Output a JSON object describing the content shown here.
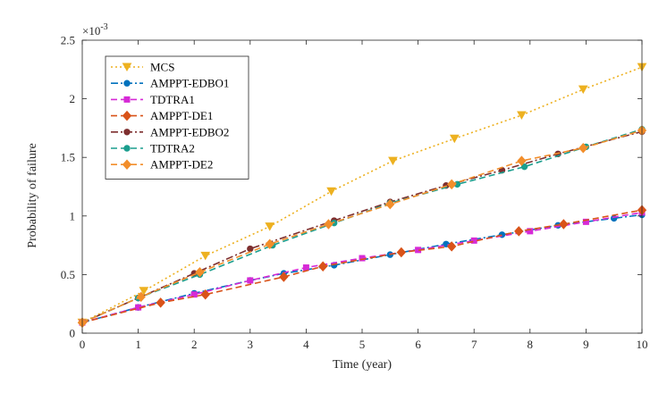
{
  "chart_data": {
    "type": "line",
    "title": "",
    "xlabel": "Time (year)",
    "ylabel": "Probability of failure",
    "xlim": [
      0,
      10
    ],
    "ylim": [
      0,
      2.5
    ],
    "y_exponent_base": "×10",
    "y_exponent_power": "-3",
    "xticks": [
      0,
      1,
      2,
      3,
      4,
      5,
      6,
      7,
      8,
      9,
      10
    ],
    "yticks": [
      0,
      0.5,
      1,
      1.5,
      2,
      2.5
    ],
    "xtick_labels": [
      "0",
      "1",
      "2",
      "3",
      "4",
      "5",
      "6",
      "7",
      "8",
      "9",
      "10"
    ],
    "ytick_labels": [
      "0",
      "0.5",
      "1",
      "1.5",
      "2",
      "2.5"
    ],
    "grid": false,
    "legend_position": "top-left",
    "series": [
      {
        "name": "MCS",
        "color": "#EDB120",
        "dash": "dotted",
        "marker": "triangle-down",
        "x": [
          0,
          1.1,
          2.2,
          3.35,
          4.45,
          5.55,
          6.65,
          7.85,
          8.95,
          10
        ],
        "y": [
          0.09,
          0.36,
          0.66,
          0.91,
          1.21,
          1.47,
          1.66,
          1.86,
          2.08,
          2.27
        ]
      },
      {
        "name": "AMPPT-EDBO1",
        "color": "#0072BD",
        "dash": "dashdot",
        "marker": "circle",
        "x": [
          0,
          1,
          2,
          3,
          3.6,
          4.5,
          5.5,
          6.5,
          7.5,
          8.5,
          9.5,
          10
        ],
        "y": [
          0.09,
          0.22,
          0.34,
          0.45,
          0.51,
          0.58,
          0.67,
          0.76,
          0.84,
          0.92,
          0.98,
          1.01
        ]
      },
      {
        "name": "TDTRA1",
        "color": "#D62AD6",
        "dash": "dashed",
        "marker": "square",
        "x": [
          0,
          1,
          2,
          3,
          4,
          5,
          6,
          7,
          8,
          9,
          10
        ],
        "y": [
          0.09,
          0.22,
          0.33,
          0.45,
          0.56,
          0.64,
          0.71,
          0.79,
          0.87,
          0.95,
          1.03
        ]
      },
      {
        "name": "AMPPT-DE1",
        "color": "#D95319",
        "dash": "dashed",
        "marker": "diamond",
        "x": [
          0,
          1.4,
          2.2,
          3.6,
          4.3,
          5.7,
          6.6,
          7.8,
          8.6,
          10
        ],
        "y": [
          0.09,
          0.26,
          0.33,
          0.48,
          0.57,
          0.69,
          0.74,
          0.87,
          0.93,
          1.05
        ]
      },
      {
        "name": "AMPPT-EDBO2",
        "color": "#7E2F2F",
        "dash": "dashdot",
        "marker": "circle",
        "x": [
          0,
          1,
          2,
          3,
          4.5,
          5.5,
          6.5,
          7.5,
          8.5,
          10
        ],
        "y": [
          0.09,
          0.3,
          0.51,
          0.72,
          0.96,
          1.12,
          1.26,
          1.39,
          1.53,
          1.72
        ]
      },
      {
        "name": "TDTRA2",
        "color": "#1B9E8E",
        "dash": "dashed",
        "marker": "circle",
        "x": [
          0,
          1,
          2.1,
          3.4,
          4.5,
          5.5,
          6.7,
          7.9,
          9,
          10
        ],
        "y": [
          0.09,
          0.3,
          0.5,
          0.75,
          0.94,
          1.11,
          1.27,
          1.42,
          1.59,
          1.74
        ]
      },
      {
        "name": "AMPPT-DE2",
        "color": "#F28E2B",
        "dash": "dashed",
        "marker": "diamond",
        "x": [
          0,
          1.05,
          2.1,
          3.35,
          4.4,
          5.5,
          6.6,
          7.85,
          8.95,
          10
        ],
        "y": [
          0.09,
          0.31,
          0.52,
          0.76,
          0.93,
          1.1,
          1.27,
          1.47,
          1.58,
          1.73
        ]
      }
    ]
  }
}
